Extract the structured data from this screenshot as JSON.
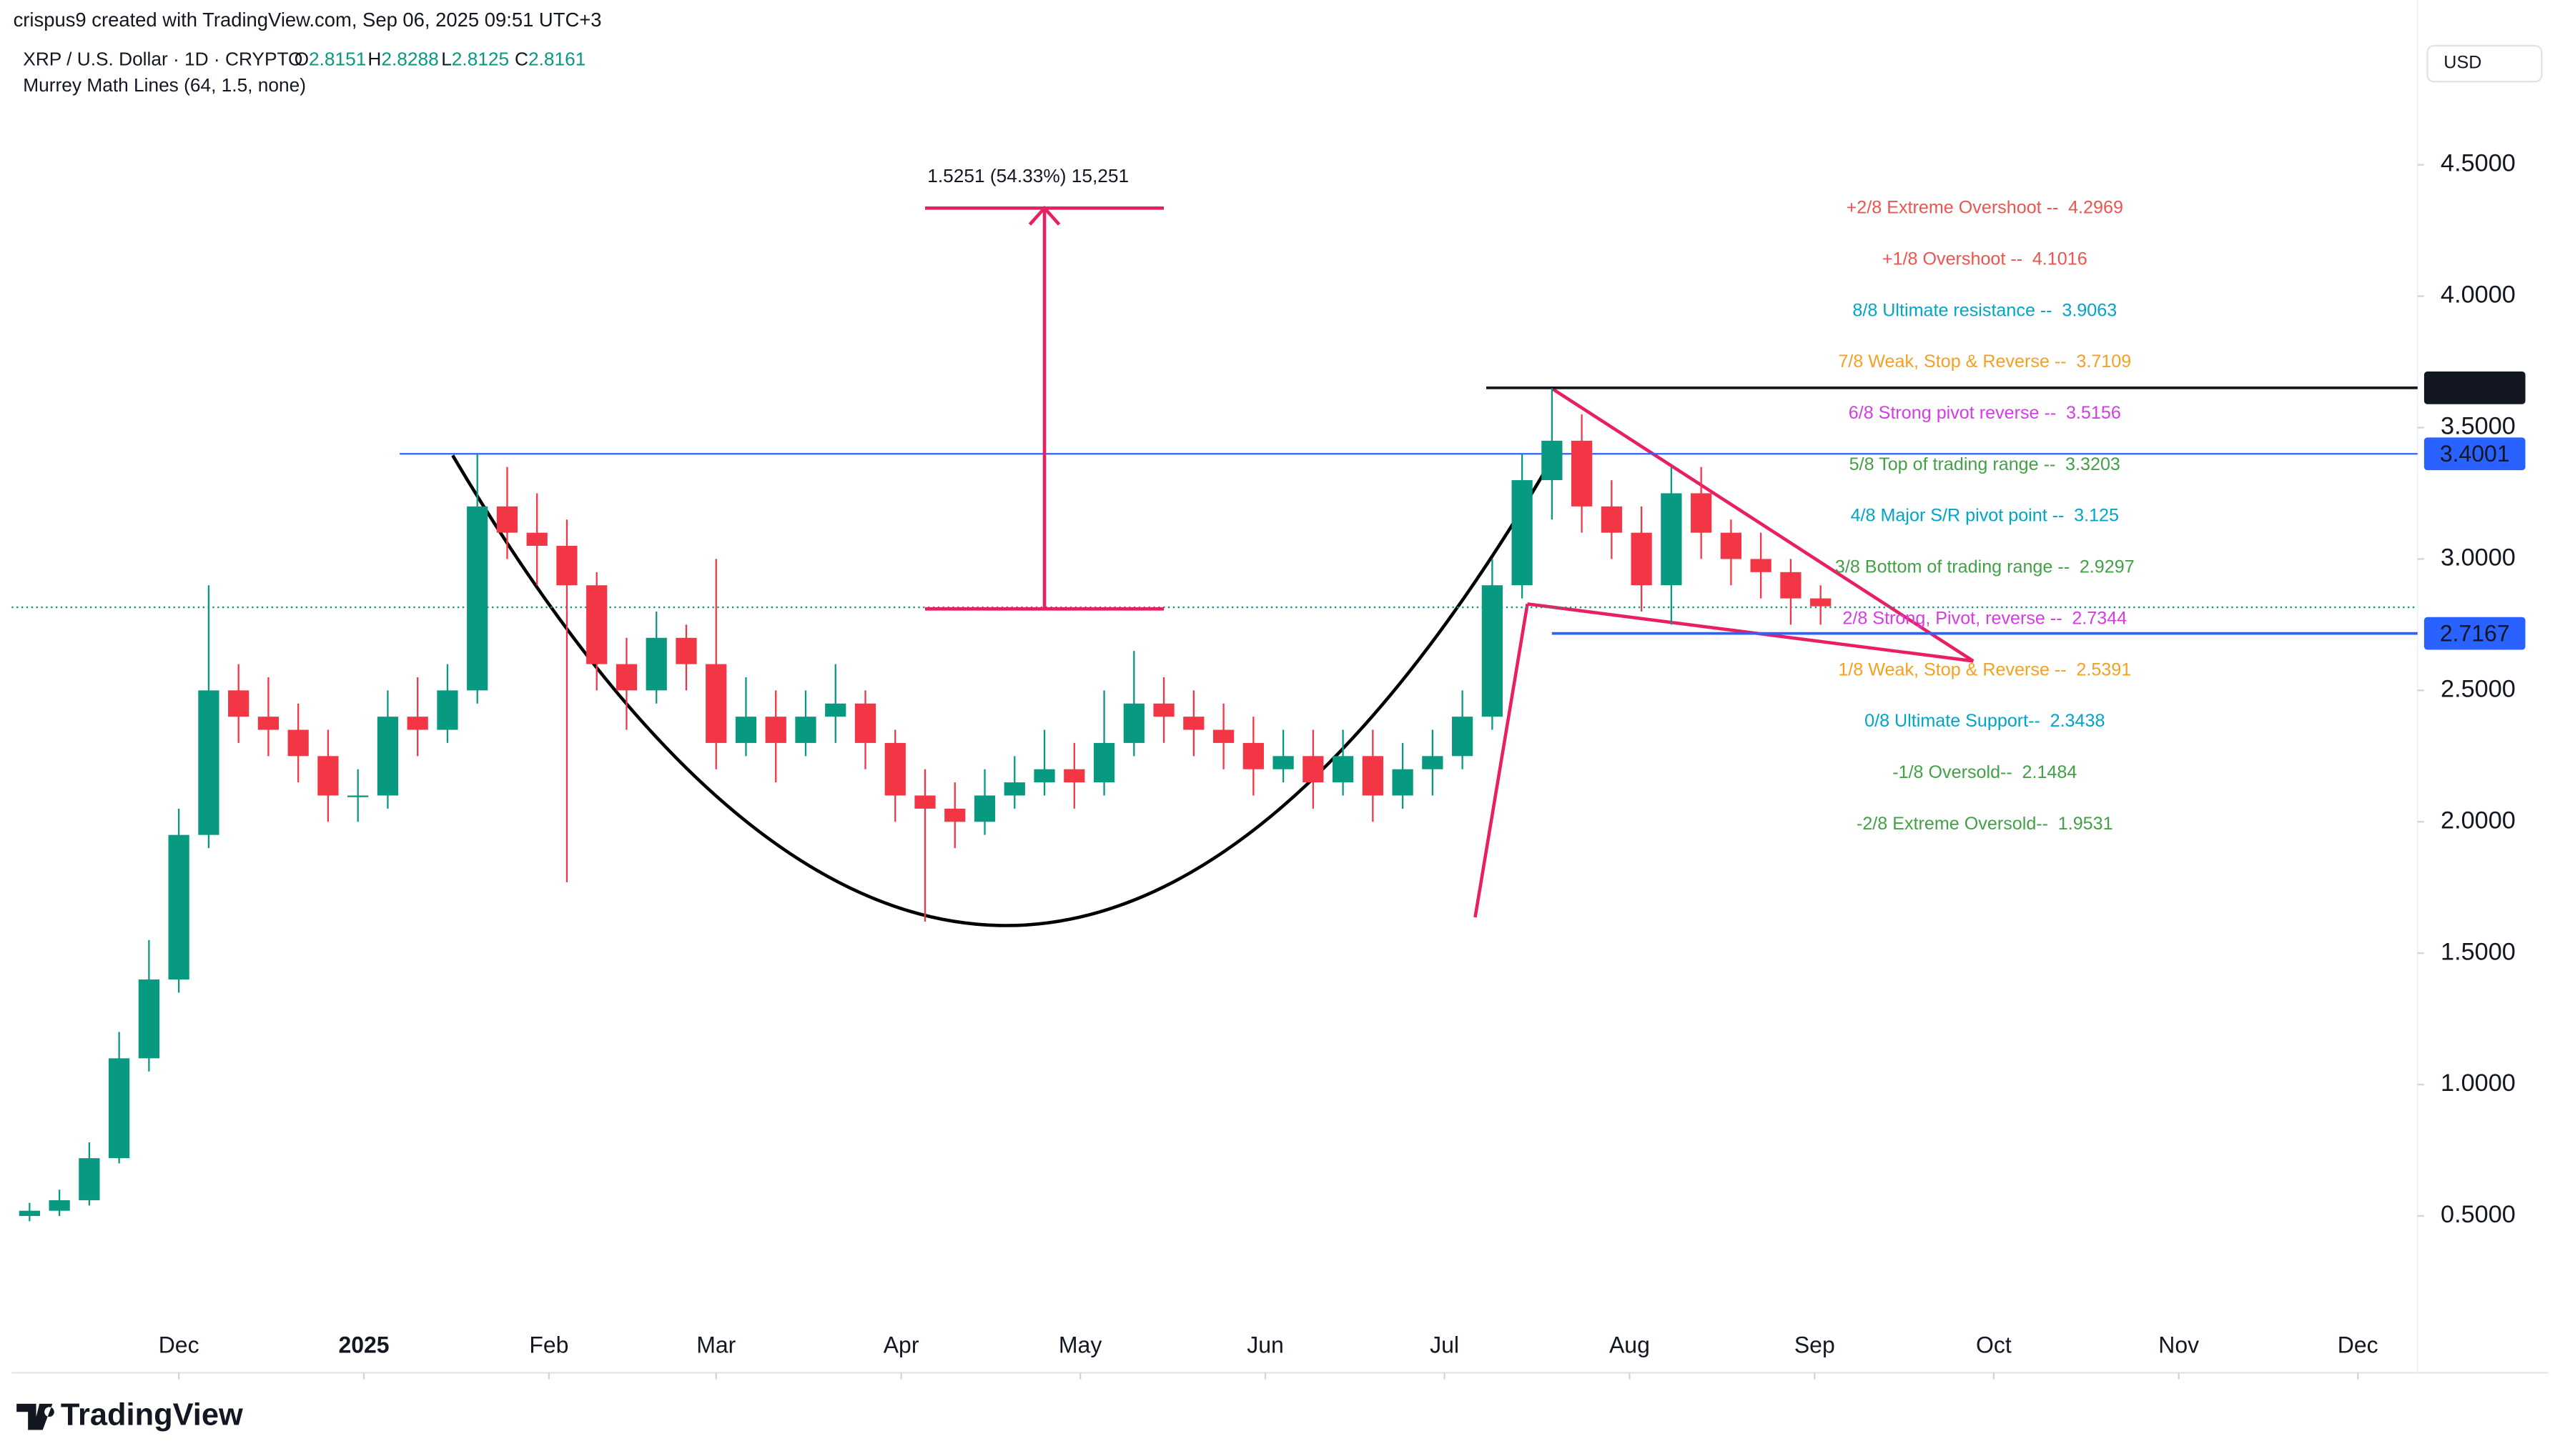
{
  "chart_data": {
    "type": "candlestick",
    "header": "crispus9 created with TradingView.com, Sep 06, 2025 09:51 UTC+3",
    "title": "XRP / U.S. Dollar · 1D · CRYPTO",
    "ohlc": [
      {
        "label": "O",
        "value": 2.8151
      },
      {
        "label": "H",
        "value": 2.8288
      },
      {
        "label": "L",
        "value": 2.8125
      },
      {
        "label": "C",
        "value": 2.8161
      }
    ],
    "indicator": "Murrey Math Lines (64, 1.5, none)",
    "currency": "USD",
    "brand": "TradingView",
    "up_color": "#089981",
    "down_color": "#f23645",
    "x": [
      3,
      8,
      13,
      18,
      23,
      28,
      33,
      38,
      43,
      48,
      53,
      58,
      63,
      68,
      73,
      78,
      83,
      88,
      93,
      98,
      103,
      108,
      113,
      118,
      123,
      128,
      133,
      138,
      143,
      148,
      153,
      158,
      163,
      168,
      173,
      178,
      183,
      188,
      193,
      198,
      203,
      208,
      213,
      218,
      223,
      228,
      233,
      238,
      243,
      248,
      253,
      258,
      263,
      268,
      273,
      278,
      283,
      288,
      293,
      298,
      303
    ],
    "open": [
      0.5,
      0.52,
      0.56,
      0.72,
      1.1,
      1.4,
      1.95,
      2.5,
      2.4,
      2.35,
      2.25,
      2.1,
      2.1,
      2.4,
      2.35,
      2.5,
      3.2,
      3.1,
      3.05,
      2.9,
      2.6,
      2.5,
      2.7,
      2.6,
      2.3,
      2.4,
      2.3,
      2.4,
      2.45,
      2.3,
      2.1,
      2.05,
      2.0,
      2.1,
      2.15,
      2.2,
      2.15,
      2.3,
      2.45,
      2.4,
      2.35,
      2.3,
      2.2,
      2.25,
      2.15,
      2.25,
      2.1,
      2.2,
      2.25,
      2.4,
      2.9,
      3.3,
      3.45,
      3.2,
      3.1,
      2.9,
      3.25,
      3.1,
      3.0,
      2.95,
      2.85
    ],
    "high": [
      0.55,
      0.6,
      0.78,
      1.2,
      1.55,
      2.05,
      2.9,
      2.6,
      2.55,
      2.45,
      2.35,
      2.2,
      2.5,
      2.55,
      2.6,
      3.4,
      3.35,
      3.25,
      3.15,
      2.95,
      2.7,
      2.8,
      2.75,
      3.0,
      2.55,
      2.5,
      2.5,
      2.6,
      2.5,
      2.35,
      2.2,
      2.15,
      2.2,
      2.25,
      2.35,
      2.3,
      2.5,
      2.65,
      2.55,
      2.5,
      2.45,
      2.4,
      2.35,
      2.35,
      2.35,
      2.35,
      2.3,
      2.35,
      2.5,
      3.0,
      3.4,
      3.65,
      3.55,
      3.3,
      3.2,
      3.35,
      3.35,
      3.15,
      3.1,
      3.0,
      2.9
    ],
    "low": [
      0.48,
      0.5,
      0.54,
      0.7,
      1.05,
      1.35,
      1.9,
      2.3,
      2.25,
      2.15,
      2.0,
      2.0,
      2.05,
      2.25,
      2.3,
      2.45,
      3.0,
      2.9,
      1.77,
      2.5,
      2.35,
      2.45,
      2.5,
      2.2,
      2.25,
      2.15,
      2.25,
      2.3,
      2.2,
      2.0,
      1.62,
      1.9,
      1.95,
      2.05,
      2.1,
      2.05,
      2.1,
      2.25,
      2.3,
      2.25,
      2.2,
      2.1,
      2.15,
      2.05,
      2.1,
      2.0,
      2.05,
      2.1,
      2.2,
      2.35,
      2.85,
      3.15,
      3.1,
      3.0,
      2.8,
      2.75,
      3.0,
      2.9,
      2.85,
      2.75,
      2.75
    ],
    "close": [
      0.52,
      0.56,
      0.72,
      1.1,
      1.4,
      1.95,
      2.5,
      2.4,
      2.35,
      2.25,
      2.1,
      2.1,
      2.4,
      2.35,
      2.5,
      3.2,
      3.1,
      3.05,
      2.9,
      2.6,
      2.5,
      2.7,
      2.6,
      2.3,
      2.4,
      2.3,
      2.4,
      2.45,
      2.3,
      2.1,
      2.05,
      2.0,
      2.1,
      2.15,
      2.2,
      2.15,
      2.3,
      2.45,
      2.4,
      2.35,
      2.3,
      2.2,
      2.25,
      2.15,
      2.25,
      2.1,
      2.2,
      2.25,
      2.4,
      2.9,
      3.3,
      3.45,
      3.2,
      3.1,
      2.9,
      3.25,
      3.1,
      3.0,
      2.95,
      2.85,
      2.82
    ],
    "xlim": [
      0,
      403
    ],
    "xticks": [
      {
        "value": 28,
        "label": "Dec"
      },
      {
        "value": 59,
        "label": "2025"
      },
      {
        "value": 90,
        "label": "Feb"
      },
      {
        "value": 118,
        "label": "Mar"
      },
      {
        "value": 149,
        "label": "Apr"
      },
      {
        "value": 179,
        "label": "May"
      },
      {
        "value": 210,
        "label": "Jun"
      },
      {
        "value": 240,
        "label": "Jul"
      },
      {
        "value": 271,
        "label": "Aug"
      },
      {
        "value": 302,
        "label": "Sep"
      },
      {
        "value": 332,
        "label": "Oct"
      },
      {
        "value": 363,
        "label": "Nov"
      },
      {
        "value": 393,
        "label": "Dec"
      }
    ],
    "ylim": [
      0.065,
      5.127
    ],
    "yticks": [
      {
        "value": 0.5,
        "label": "0.5000"
      },
      {
        "value": 1,
        "label": "1.0000"
      },
      {
        "value": 1.5,
        "label": "1.5000"
      },
      {
        "value": 2,
        "label": "2.0000"
      },
      {
        "value": 2.5,
        "label": "2.5000"
      },
      {
        "value": 3,
        "label": "3.0000"
      },
      {
        "value": 3.5,
        "label": "3.5000"
      },
      {
        "value": 4,
        "label": "4.0000"
      },
      {
        "value": 4.5,
        "label": "4.5000"
      }
    ],
    "last_price": 2.8161,
    "price_lines": [
      {
        "value": 3.6512,
        "color": "#131722",
        "start": 247
      },
      {
        "value": 3.4001,
        "color": "#2962ff",
        "start": 65
      },
      {
        "value": 2.7167,
        "color": "#2962ff",
        "start": 258
      }
    ],
    "murrey": [
      {
        "label": "+2/8 Extreme Overshoot --",
        "value": 4.2969,
        "color": "#ef5350"
      },
      {
        "label": "+1/8 Overshoot --",
        "value": 4.1016,
        "color": "#ef5350"
      },
      {
        "label": "8/8 Ultimate resistance --",
        "value": 3.9063,
        "color": "#00a5c9"
      },
      {
        "label": "7/8 Weak, Stop & Reverse --",
        "value": 3.7109,
        "color": "#f5a023"
      },
      {
        "label": "6/8 Strong pivot reverse --",
        "value": 3.5156,
        "color": "#d63ce6"
      },
      {
        "label": "5/8 Top of trading range --",
        "value": 3.3203,
        "color": "#43a047"
      },
      {
        "label": "4/8 Major S/R pivot point --",
        "value": 3.125,
        "color": "#00a5c9"
      },
      {
        "label": "3/8 Bottom of trading range --",
        "value": 2.9297,
        "color": "#43a047"
      },
      {
        "label": "2/8 Strong, Pivot, reverse --",
        "value": 2.7344,
        "color": "#d63ce6"
      },
      {
        "label": "1/8 Weak, Stop & Reverse --",
        "value": 2.5391,
        "color": "#f5a023"
      },
      {
        "label": "0/8 Ultimate Support--",
        "value": 2.3438,
        "color": "#00a5c9"
      },
      {
        "label": "-1/8 Oversold--",
        "value": 2.1484,
        "color": "#43a047"
      },
      {
        "label": "-2/8 Extreme Oversold--",
        "value": 1.9531,
        "color": "#43a047"
      }
    ],
    "measure": {
      "label": "1.5251 (54.33%) 15,251",
      "from": 2.81,
      "to": 4.335,
      "x": [
        153,
        193
      ],
      "color": "#e91e63"
    }
  }
}
